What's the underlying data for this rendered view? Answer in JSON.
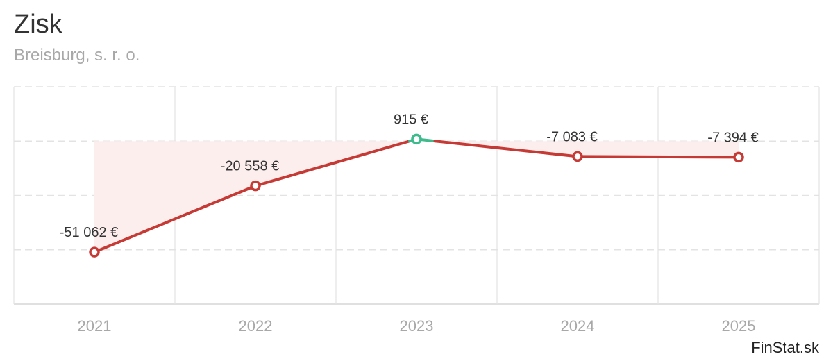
{
  "header": {
    "title": "Zisk",
    "subtitle": "Breisburg, s. r. o."
  },
  "brand": "FinStat.sk",
  "colors": {
    "negative": "#c63a35",
    "positive": "#3dbb8d",
    "fill": "#fdeeee",
    "grid": "#e3e3e3"
  },
  "chart_data": {
    "type": "line",
    "title": "Zisk",
    "subtitle": "Breisburg, s. r. o.",
    "categories": [
      "2021",
      "2022",
      "2023",
      "2024",
      "2025"
    ],
    "series": [
      {
        "values": [
          -51062,
          -20558,
          915,
          -7083,
          -7394
        ],
        "labels": [
          "-51 062 €",
          "-20 558 €",
          "915 €",
          "-7 083 €",
          "-7 394 €"
        ]
      }
    ],
    "ylim": [
      -75000,
      25000
    ],
    "grid": true,
    "legend": "none"
  }
}
